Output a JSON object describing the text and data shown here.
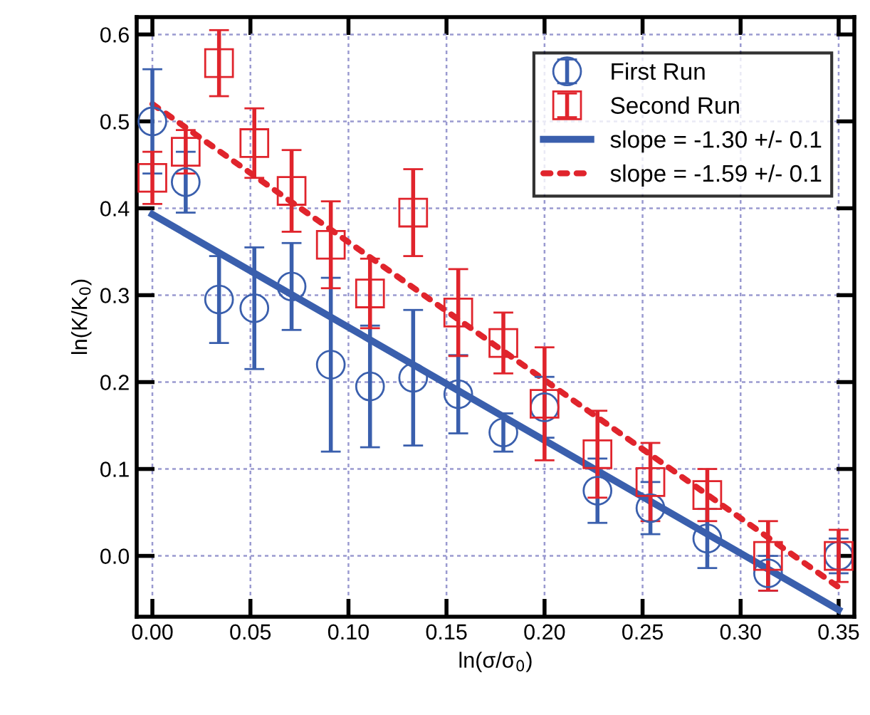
{
  "chart_data": {
    "type": "scatter",
    "xlabel": "ln(σ/σ$_{0}$)",
    "ylabel": "ln(K/K$_{0}$)",
    "xlim": [
      -0.008,
      0.358
    ],
    "ylim": [
      -0.07,
      0.62
    ],
    "xticks": [
      {
        "value": 0,
        "label": "0.00"
      },
      {
        "value": 0.05,
        "label": "0.05"
      },
      {
        "value": 0.1,
        "label": "0.10"
      },
      {
        "value": 0.15,
        "label": "0.15"
      },
      {
        "value": 0.2,
        "label": "0.20"
      },
      {
        "value": 0.25,
        "label": "0.25"
      },
      {
        "value": 0.3,
        "label": "0.30"
      },
      {
        "value": 0.35,
        "label": "0.35"
      }
    ],
    "yticks": [
      {
        "value": 0,
        "label": "0.0"
      },
      0.1,
      0.2,
      0.3,
      0.4,
      0.5,
      0.6
    ],
    "grid": true,
    "legend": "top right",
    "series": [
      {
        "name": "First Run",
        "marker": "circle",
        "color": "#3a5fad",
        "x": [
          0,
          0.017,
          0.034,
          0.052,
          0.071,
          0.091,
          0.111,
          0.133,
          0.156,
          0.179,
          0.2,
          0.227,
          0.254,
          0.283,
          0.314,
          0.35
        ],
        "values": [
          0.5,
          0.43,
          0.295,
          0.285,
          0.31,
          0.22,
          0.195,
          0.205,
          0.186,
          0.142,
          0.171,
          0.075,
          0.055,
          0.02,
          -0.02,
          0.0
        ],
        "errors": [
          0.06,
          0.035,
          0.05,
          0.07,
          0.05,
          0.1,
          0.07,
          0.078,
          0.045,
          0.022,
          0.035,
          0.037,
          0.03,
          0.034,
          0.02,
          0.02
        ]
      },
      {
        "name": "Second Run",
        "marker": "square",
        "color": "#e0242c",
        "x": [
          0,
          0.017,
          0.034,
          0.052,
          0.071,
          0.091,
          0.111,
          0.133,
          0.156,
          0.179,
          0.2,
          0.227,
          0.254,
          0.283,
          0.314,
          0.35
        ],
        "values": [
          0.435,
          0.465,
          0.567,
          0.475,
          0.42,
          0.358,
          0.302,
          0.395,
          0.28,
          0.245,
          0.175,
          0.117,
          0.085,
          0.07,
          0.0,
          0.0
        ],
        "errors": [
          0.03,
          0.025,
          0.038,
          0.04,
          0.047,
          0.05,
          0.04,
          0.05,
          0.05,
          0.035,
          0.065,
          0.05,
          0.045,
          0.03,
          0.04,
          0.03
        ]
      },
      {
        "name": "slope = -1.30 +/- 0.1",
        "type": "line",
        "line_style": "solid",
        "color": "#3a5fad",
        "x": [
          0,
          0.35
        ],
        "values": [
          0.393,
          -0.062
        ]
      },
      {
        "name": "slope = -1.59 +/- 0.1",
        "type": "line",
        "line_style": "dotted",
        "color": "#e0242c",
        "x": [
          0,
          0.35
        ],
        "values": [
          0.52,
          -0.036
        ]
      }
    ]
  }
}
